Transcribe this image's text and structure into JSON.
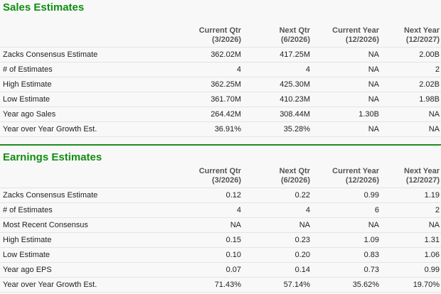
{
  "colors": {
    "title_green": "#118d11",
    "separator_green": "#1f8a1f",
    "header_text": "#555555",
    "row_border": "#e4e4e4",
    "background": "#f8f8f8"
  },
  "columns": [
    {
      "label": "Current Qtr",
      "period": "(3/2026)"
    },
    {
      "label": "Next Qtr",
      "period": "(6/2026)"
    },
    {
      "label": "Current Year",
      "period": "(12/2026)"
    },
    {
      "label": "Next Year",
      "period": "(12/2027)"
    }
  ],
  "sales": {
    "title": "Sales Estimates",
    "rows": [
      {
        "label": "Zacks Consensus Estimate",
        "values": [
          "362.02M",
          "417.25M",
          "NA",
          "2.00B"
        ]
      },
      {
        "label": "# of Estimates",
        "values": [
          "4",
          "4",
          "NA",
          "2"
        ]
      },
      {
        "label": "High Estimate",
        "values": [
          "362.25M",
          "425.30M",
          "NA",
          "2.02B"
        ]
      },
      {
        "label": "Low Estimate",
        "values": [
          "361.70M",
          "410.23M",
          "NA",
          "1.98B"
        ]
      },
      {
        "label": "Year ago Sales",
        "values": [
          "264.42M",
          "308.44M",
          "1.30B",
          "NA"
        ]
      },
      {
        "label": "Year over Year Growth Est.",
        "values": [
          "36.91%",
          "35.28%",
          "NA",
          "NA"
        ]
      }
    ]
  },
  "earnings": {
    "title": "Earnings Estimates",
    "rows": [
      {
        "label": "Zacks Consensus Estimate",
        "values": [
          "0.12",
          "0.22",
          "0.99",
          "1.19"
        ]
      },
      {
        "label": "# of Estimates",
        "values": [
          "4",
          "4",
          "6",
          "2"
        ]
      },
      {
        "label": "Most Recent Consensus",
        "values": [
          "NA",
          "NA",
          "NA",
          "NA"
        ]
      },
      {
        "label": "High Estimate",
        "values": [
          "0.15",
          "0.23",
          "1.09",
          "1.31"
        ]
      },
      {
        "label": "Low Estimate",
        "values": [
          "0.10",
          "0.20",
          "0.83",
          "1.06"
        ]
      },
      {
        "label": "Year ago EPS",
        "values": [
          "0.07",
          "0.14",
          "0.73",
          "0.99"
        ]
      },
      {
        "label": "Year over Year Growth Est.",
        "values": [
          "71.43%",
          "57.14%",
          "35.62%",
          "19.70%"
        ]
      }
    ]
  }
}
